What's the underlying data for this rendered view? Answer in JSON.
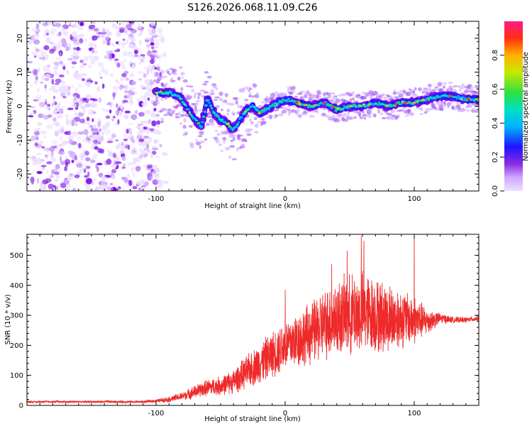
{
  "title": "S126.2026.068.11.09.C26",
  "colors": {
    "snr_line": "#ee2a2a",
    "axis": "#000000",
    "colormap": [
      "#ece0ff",
      "#cfa8ff",
      "#a35cf2",
      "#7a10e8",
      "#2a14ff",
      "#00b4ff",
      "#00e0c0",
      "#30e040",
      "#c8e800",
      "#ffb000",
      "#ff3010",
      "#ff1a8a"
    ]
  },
  "chart_data": [
    {
      "type": "heatmap",
      "name": "spectrogram",
      "xlabel": "Height of straight line (km)",
      "ylabel": "Frequency (Hz)",
      "xlim": [
        -200,
        150
      ],
      "ylim": [
        -25,
        25
      ],
      "xticks": [
        -100,
        0,
        100
      ],
      "xtick_labels": [
        "-100",
        "0",
        "100"
      ],
      "yticks": [
        -20,
        -10,
        0,
        10,
        20
      ],
      "ytick_labels": [
        "-20",
        "-10",
        "0",
        "10",
        "20"
      ],
      "ridge_x": [
        -100,
        -90,
        -82,
        -75,
        -70,
        -65,
        -60,
        -55,
        -50,
        -45,
        -40,
        -35,
        -30,
        -25,
        -20,
        -15,
        -10,
        -5,
        0,
        10,
        20,
        30,
        40,
        50,
        60,
        70,
        80,
        90,
        100,
        110,
        120,
        130,
        140,
        150
      ],
      "ridge_freq": [
        4,
        4,
        3,
        -1,
        -4,
        -6,
        2,
        -2,
        -4,
        -5,
        -7,
        -4,
        -1,
        0,
        -2,
        -1,
        0,
        1,
        2,
        1,
        0,
        1,
        -1,
        0,
        0,
        1,
        0,
        1,
        1,
        2,
        3,
        3,
        2,
        2
      ],
      "noise_region_x": [
        -200,
        -100
      ],
      "colorbar": {
        "label": "Normalized spectral amplitude",
        "range": [
          0,
          1
        ],
        "ticks": [
          0.0,
          0.2,
          0.4,
          0.6,
          0.8
        ],
        "tick_labels": [
          "0.0",
          "0.2",
          "0.4",
          "0.6",
          "0.8"
        ]
      }
    },
    {
      "type": "line",
      "name": "snr",
      "xlabel": "Height of straight line (km)",
      "ylabel": "SNR (10 * v/v)",
      "xlim": [
        -200,
        150
      ],
      "ylim": [
        0,
        570
      ],
      "xticks": [
        -100,
        0,
        100
      ],
      "xtick_labels": [
        "-100",
        "0",
        "100"
      ],
      "yticks": [
        0,
        100,
        200,
        300,
        400,
        500
      ],
      "ytick_labels": [
        "0",
        "100",
        "200",
        "300",
        "400",
        "500"
      ],
      "envelope_x": [
        -200,
        -150,
        -110,
        -100,
        -90,
        -80,
        -70,
        -60,
        -50,
        -40,
        -30,
        -20,
        -10,
        0,
        10,
        20,
        30,
        40,
        50,
        60,
        70,
        80,
        90,
        100,
        110,
        120,
        130,
        140,
        150
      ],
      "envelope_mean": [
        12,
        12,
        12,
        15,
        20,
        30,
        45,
        60,
        65,
        80,
        110,
        140,
        170,
        200,
        220,
        240,
        270,
        290,
        300,
        310,
        300,
        290,
        290,
        285,
        280,
        290,
        285,
        285,
        290
      ],
      "envelope_spread": [
        4,
        4,
        5,
        6,
        10,
        15,
        25,
        30,
        35,
        45,
        60,
        75,
        85,
        95,
        105,
        115,
        130,
        140,
        150,
        150,
        140,
        130,
        110,
        90,
        50,
        20,
        12,
        10,
        10
      ],
      "peaks": [
        {
          "x": 59,
          "y": 565
        },
        {
          "x": 100,
          "y": 560
        },
        {
          "x": 61,
          "y": 548
        },
        {
          "x": 48,
          "y": 515
        },
        {
          "x": 36,
          "y": 470
        },
        {
          "x": 0,
          "y": 385
        }
      ]
    }
  ]
}
